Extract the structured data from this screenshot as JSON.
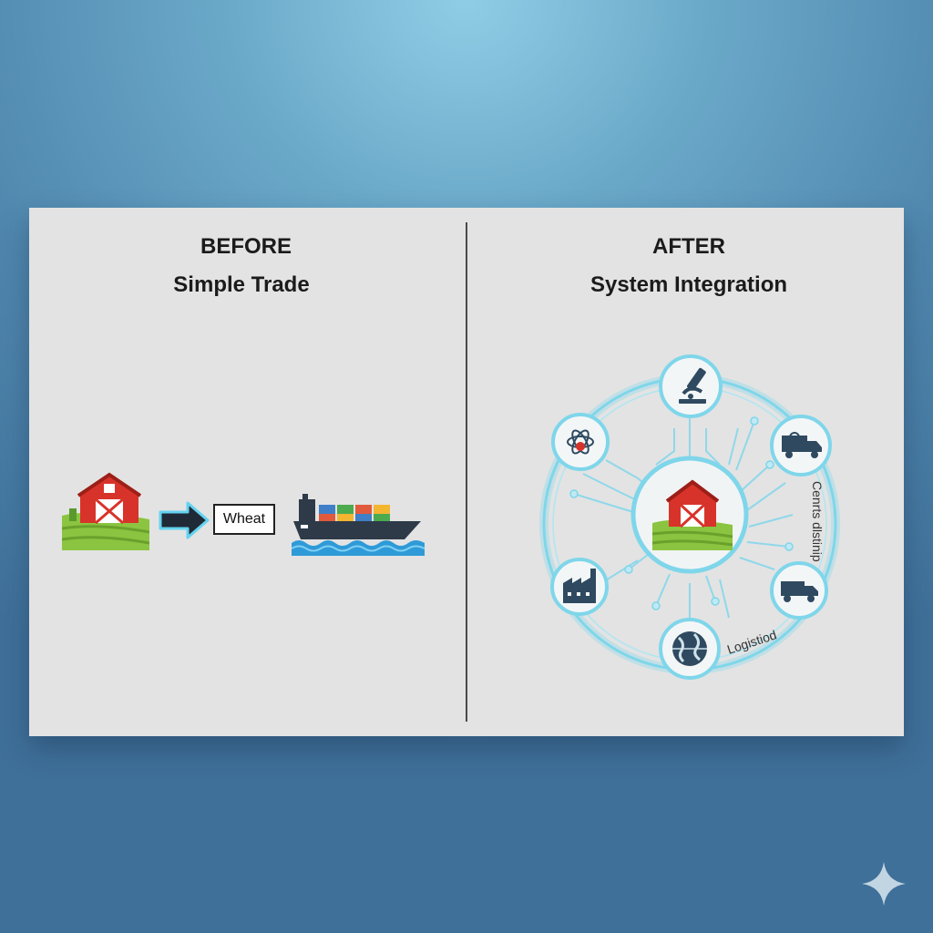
{
  "before": {
    "heading": "BEFORE",
    "subheading": "Simple Trade",
    "product_label": "Wheat"
  },
  "after": {
    "heading": "AFTER",
    "subheading": "System Integration",
    "ring_labels": [
      "Logistiod",
      "Cenrts dlstinip"
    ]
  },
  "colors": {
    "barn_red": "#d8332a",
    "field_green": "#8bc440",
    "network_cyan": "#7fd6ea",
    "arrow_outline": "#63d3f0"
  },
  "icons": [
    "barn-icon",
    "arrow-right-icon",
    "cargo-ship-icon",
    "microscope-icon",
    "science-lab-icon",
    "delivery-truck-icon",
    "factory-icon",
    "globe-icon"
  ]
}
